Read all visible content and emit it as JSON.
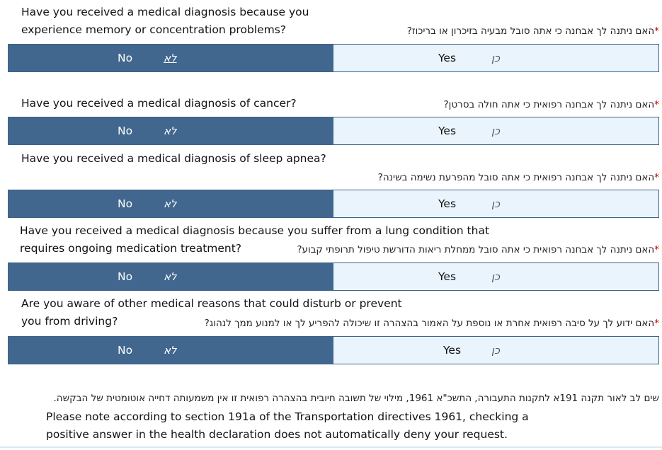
{
  "questions": [
    {
      "en_line1": "Have you received a medical diagnosis because you",
      "en_line2": "experience memory or concentration problems?",
      "he": "האם ניתנה לך אבחנה כי אתה סובל מבעיה בזיכרון או בריכוז?",
      "no_label": "No",
      "no_he": "לא",
      "yes_label": "Yes",
      "yes_he": "כן",
      "selected": "No"
    },
    {
      "en_line1": "Have you received a medical diagnosis of cancer?",
      "en_line2": "",
      "he": "האם ניתנה לך אבחנה רפואית כי אתה חולה בסרטן?",
      "no_label": "No",
      "no_he": "לא",
      "yes_label": "Yes",
      "yes_he": "כן",
      "selected": "No"
    },
    {
      "en_line1": "Have you received a medical diagnosis of sleep apnea?",
      "en_line2": "",
      "he": "האם ניתנה לך אבחנה רפואית כי אתה סובל מהפרעת נשימה בשינה?",
      "no_label": "No",
      "no_he": "לא",
      "yes_label": "Yes",
      "yes_he": "כן",
      "selected": "No"
    },
    {
      "en_line1": "Have you received a medical diagnosis because you suffer from a lung condition that",
      "en_line2": "requires ongoing medication treatment?",
      "he": "האם ניתנה לך אבחנה רפואית כי אתה סובל ממחלת ריאות הדורשת טיפול תרופתי קבוע?",
      "no_label": "No",
      "no_he": "לא",
      "yes_label": "Yes",
      "yes_he": "כן",
      "selected": "No"
    },
    {
      "en_line1": "Are you aware of other medical reasons that could disturb or prevent",
      "en_line2": "you from driving?",
      "he": "האם ידוע לך על סיבה רפואית אחרת או נוספת על האמור בהצהרה זו שיכולה להפריע לך או למנוע ממך לנהוג?",
      "no_label": "No",
      "no_he": "לא",
      "yes_label": "Yes",
      "yes_he": "כן",
      "selected": "No"
    }
  ],
  "required_mark": "*",
  "note": {
    "he": "שים לב לאור תקנה 191א לתקנות התעבורה, התשכ\"א 1961, מילוי של תשובה חיובית בהצהרה רפואית זו אין משמעותה דחייה אוטומטית של הבקשה.",
    "en_line1": "Please note according to section 191a of the Transportation directives 1961, checking a",
    "en_line2": "positive answer in the health declaration does not automatically deny your request."
  },
  "colors": {
    "selected_bg": "#41678f",
    "unselected_bg": "#eaf4fc",
    "required": "#cc0000"
  }
}
